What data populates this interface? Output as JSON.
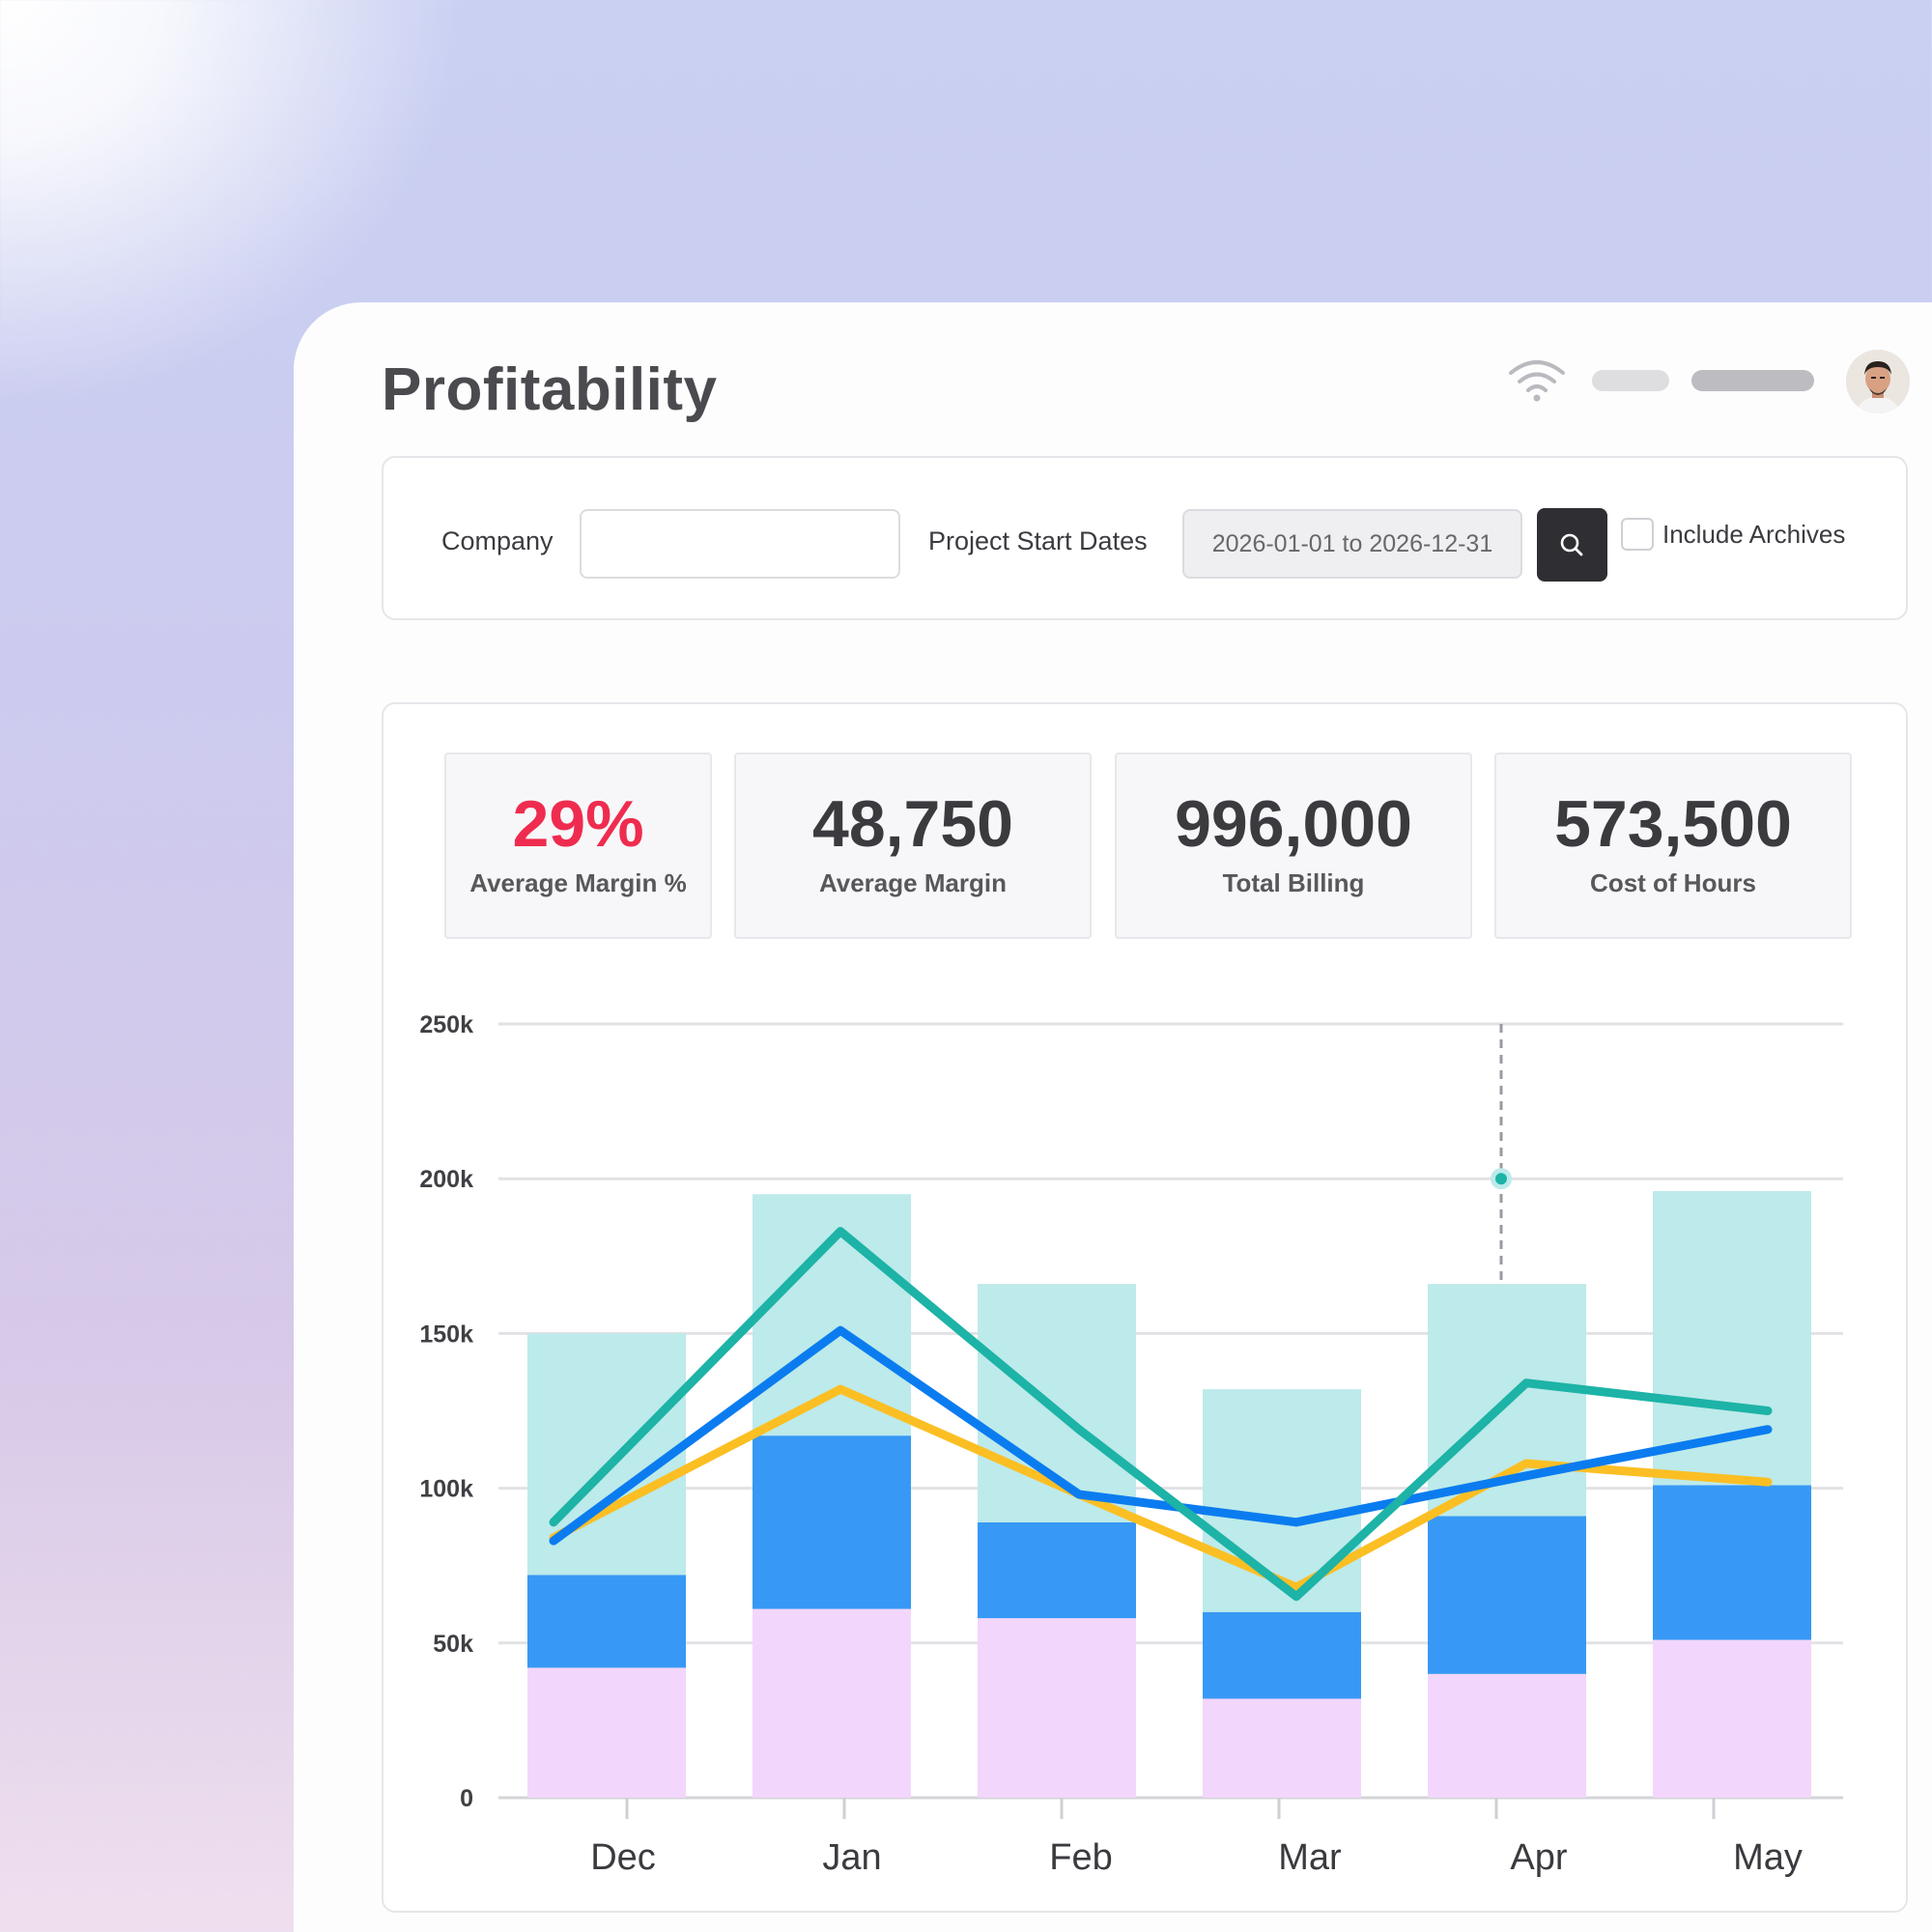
{
  "page": {
    "title": "Profitability"
  },
  "filters": {
    "company_label": "Company",
    "company_value": "",
    "dates_label": "Project Start Dates",
    "dates_value": "2026-01-01 to 2026-12-31",
    "archives_label": "Include Archives",
    "include_archives": false
  },
  "kpis": [
    {
      "value": "29%",
      "label": "Average Margin %"
    },
    {
      "value": "48,750",
      "label": "Average Margin"
    },
    {
      "value": "996,000",
      "label": "Total Billing"
    },
    {
      "value": "573,500",
      "label": "Cost of Hours"
    }
  ],
  "colors": {
    "kpi_highlight": "#ef2c4f",
    "bar_base": "#f3d6fb",
    "bar_mid": "#3799f5",
    "bar_top": "#bdeaea",
    "line_teal": "#1db3a7",
    "line_blue": "#0b7cf0",
    "line_yellow": "#fbbf24"
  },
  "icons": [
    "wifi-icon",
    "search-icon",
    "avatar"
  ],
  "chart_data": {
    "type": "bar",
    "categories": [
      "Dec",
      "Jan",
      "Feb",
      "Mar",
      "Apr",
      "May"
    ],
    "ylim": [
      0,
      250000
    ],
    "yticks": [
      0,
      50000,
      100000,
      150000,
      200000,
      250000
    ],
    "ytick_labels": [
      "0",
      "50k",
      "100k",
      "150k",
      "200k",
      "250k"
    ],
    "grid": true,
    "stacked_bars": [
      {
        "values": [
          42000,
          61000,
          58000,
          32000,
          40000,
          51000
        ]
      },
      {
        "values": [
          30000,
          56000,
          31000,
          28000,
          51000,
          50000
        ]
      },
      {
        "values": [
          78000,
          78000,
          77000,
          72000,
          75000,
          95000
        ]
      }
    ],
    "lines": [
      {
        "color": "line_yellow",
        "values": [
          84000,
          132000,
          98000,
          68000,
          108000,
          102000
        ]
      },
      {
        "color": "line_blue",
        "values": [
          83000,
          151000,
          98000,
          89000,
          104000,
          119000
        ]
      },
      {
        "color": "line_teal",
        "values": [
          89000,
          183000,
          119000,
          65000,
          134000,
          125000
        ]
      }
    ],
    "hover": {
      "category_index": 4,
      "value": 200000
    }
  }
}
